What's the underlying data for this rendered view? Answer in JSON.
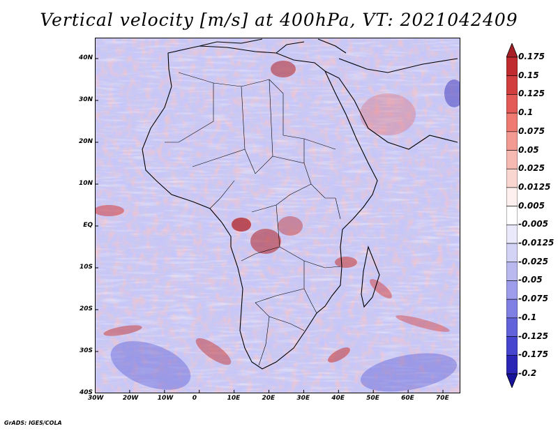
{
  "title": "Vertical velocity [m/s] at 400hPa, VT: 2021042409",
  "footer": "GrADS: IGES/COLA",
  "map": {
    "lat_labels": [
      "40N",
      "30N",
      "20N",
      "10N",
      "EQ",
      "10S",
      "20S",
      "30S",
      "40S"
    ],
    "lon_labels": [
      "30W",
      "20W",
      "10W",
      "0",
      "10E",
      "20E",
      "30E",
      "40E",
      "50E",
      "60E",
      "70E"
    ],
    "lat_range": [
      -40,
      45
    ],
    "lon_range": [
      -30,
      75
    ]
  },
  "colorbar": {
    "labels": [
      "0.175",
      "0.15",
      "0.125",
      "0.1",
      "0.075",
      "0.05",
      "0.025",
      "0.0125",
      "0.005",
      "-0.005",
      "-0.0125",
      "-0.025",
      "-0.05",
      "-0.075",
      "-0.1",
      "-0.125",
      "-0.175",
      "-0.2"
    ],
    "colors": [
      "#a51f24",
      "#bf2b2e",
      "#d23d3d",
      "#e45a56",
      "#ee7a72",
      "#f39a92",
      "#f7bab2",
      "#fad6d0",
      "#fdf0ee",
      "#ffffff",
      "#e9e9fb",
      "#d3d3f6",
      "#b9b9f0",
      "#9d9deb",
      "#8080e4",
      "#6262db",
      "#4545cf",
      "#2a25b4",
      "#16129a"
    ]
  }
}
